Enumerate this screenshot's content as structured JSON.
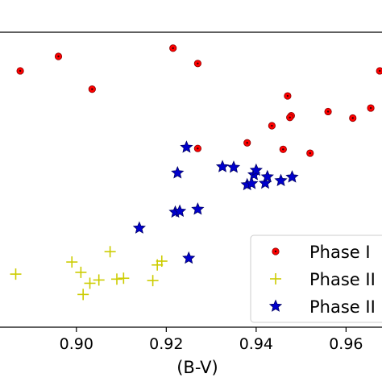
{
  "chart_data": {
    "type": "scatter",
    "xlabel": "(B-V)",
    "ylabel": "",
    "xlim": [
      0.883,
      0.968
    ],
    "ylim": [
      0.0,
      1.0
    ],
    "x_ticks": [
      0.9,
      0.92,
      0.94,
      0.96
    ],
    "x_tick_labels": [
      "0.90",
      "0.92",
      "0.94",
      "0.96"
    ],
    "legend_position": "bottom-right",
    "series": [
      {
        "name": "Phase I",
        "marker": "circle",
        "color": "#ff0000",
        "points": [
          [
            0.8875,
            0.869
          ],
          [
            0.896,
            0.918
          ],
          [
            0.9035,
            0.807
          ],
          [
            0.9215,
            0.946
          ],
          [
            0.927,
            0.894
          ],
          [
            0.947,
            0.784
          ],
          [
            0.9478,
            0.717
          ],
          [
            0.9475,
            0.711
          ],
          [
            0.9435,
            0.683
          ],
          [
            0.956,
            0.731
          ],
          [
            0.9615,
            0.709
          ],
          [
            0.9655,
            0.743
          ],
          [
            0.9675,
            0.869
          ],
          [
            0.938,
            0.625
          ],
          [
            0.946,
            0.603
          ],
          [
            0.952,
            0.59
          ],
          [
            0.927,
            0.606
          ]
        ]
      },
      {
        "name": "Phase II",
        "marker": "plus",
        "color": "#cccc00",
        "points": [
          [
            0.8865,
            0.18
          ],
          [
            0.899,
            0.221
          ],
          [
            0.901,
            0.186
          ],
          [
            0.903,
            0.149
          ],
          [
            0.9015,
            0.111
          ],
          [
            0.905,
            0.16
          ],
          [
            0.9075,
            0.256
          ],
          [
            0.909,
            0.163
          ],
          [
            0.9105,
            0.166
          ],
          [
            0.917,
            0.158
          ],
          [
            0.918,
            0.211
          ],
          [
            0.919,
            0.224
          ]
        ]
      },
      {
        "name": "Phase II",
        "marker": "star",
        "color": "#0000cc",
        "points": [
          [
            0.914,
            0.336
          ],
          [
            0.922,
            0.39
          ],
          [
            0.923,
            0.393
          ],
          [
            0.925,
            0.234
          ],
          [
            0.927,
            0.4
          ],
          [
            0.9245,
            0.61
          ],
          [
            0.9225,
            0.523
          ],
          [
            0.9325,
            0.544
          ],
          [
            0.935,
            0.542
          ],
          [
            0.938,
            0.483
          ],
          [
            0.939,
            0.487
          ],
          [
            0.9395,
            0.517
          ],
          [
            0.94,
            0.532
          ],
          [
            0.942,
            0.488
          ],
          [
            0.9425,
            0.51
          ],
          [
            0.9455,
            0.497
          ],
          [
            0.948,
            0.509
          ]
        ]
      }
    ]
  },
  "colors": {
    "axes": "#000000",
    "legend_border": "#cccccc"
  }
}
